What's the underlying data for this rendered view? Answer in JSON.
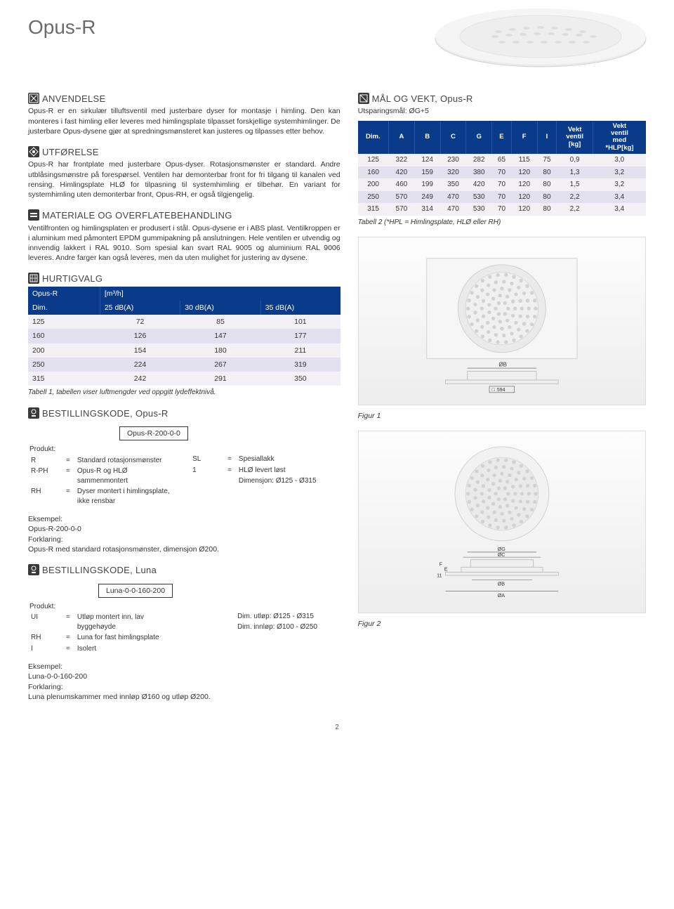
{
  "page": {
    "title": "Opus-R",
    "number": "2"
  },
  "sections": {
    "anvendelse": {
      "heading": "ANVENDELSE",
      "text": "Opus-R er en sirkulær tilluftsventil med justerbare dyser for montasje i himling. Den kan monteres i fast himling eller leveres med himlingsplate tilpasset forskjellige systemhimlinger. De justerbare Opus-dysene gjør at spredningsmønsteret kan justeres og tilpasses etter behov."
    },
    "utforelse": {
      "heading": "UTFØRELSE",
      "text": "Opus-R har frontplate med justerbare Opus-dyser. Rotasjonsmønster er standard. Andre utblåsingsmønstre på forespørsel. Ventilen har demonterbar front for fri tilgang til kanalen ved rensing. Himlingsplate HLØ for tilpasning til systemhimling er tilbehør. En variant for systemhimling uten demonterbar front, Opus-RH, er også tilgjengelig."
    },
    "materiale": {
      "heading": "MATERIALE OG OVERFLATEBEHANDLING",
      "text": "Ventilfronten og himlingsplaten er produsert i stål. Opus-dysene er i ABS plast. Ventilkroppen er i aluminium med påmontert EPDM gummipakning på anslutningen. Hele ventilen er utvendig og innvendig lakkert i RAL 9010. Som spesial kan svart RAL 9005 og aluminium RAL 9006 leveres. Andre farger kan også leveres, men da uten mulighet for justering av dysene."
    },
    "hurtigvalg": {
      "heading": "HURTIGVALG",
      "title_row": {
        "name": "Opus-R",
        "unit": "[m³/h]"
      },
      "columns": [
        "Dim.",
        "25 dB(A)",
        "30 dB(A)",
        "35 dB(A)"
      ],
      "rows": [
        [
          "125",
          "72",
          "85",
          "101"
        ],
        [
          "160",
          "126",
          "147",
          "177"
        ],
        [
          "200",
          "154",
          "180",
          "211"
        ],
        [
          "250",
          "224",
          "267",
          "319"
        ],
        [
          "315",
          "242",
          "291",
          "350"
        ]
      ],
      "caption": "Tabell 1, tabellen viser luftmengder ved oppgitt lydeffektnivå."
    },
    "bestilling_opus": {
      "heading": "BESTILLINGSKODE, Opus-R",
      "code": "Opus-R-200-0-0",
      "left": {
        "title": "Produkt:",
        "lines": [
          [
            "R",
            "=",
            "Standard rotasjonsmønster"
          ],
          [
            "R-PH",
            "=",
            "Opus-R og HLØ sammenmontert"
          ],
          [
            "RH",
            "=",
            "Dyser montert i himlingsplate, ikke rensbar"
          ]
        ]
      },
      "right": {
        "lines": [
          [
            "SL",
            "=",
            "Spesiallakk"
          ],
          [
            "1",
            "=",
            "HLØ levert løst"
          ],
          [
            "",
            "",
            "Dimensjon: Ø125 - Ø315"
          ]
        ]
      },
      "example": {
        "l1": "Eksempel:",
        "l2": "Opus-R-200-0-0",
        "l3": "Forklaring:",
        "l4": "Opus-R med standard rotasjonsmønster, dimensjon Ø200."
      }
    },
    "bestilling_luna": {
      "heading": "BESTILLINGSKODE, Luna",
      "code": "Luna-0-0-160-200",
      "left": {
        "title": "Produkt:",
        "lines": [
          [
            "UI",
            "=",
            "Utløp montert inn, lav byggehøyde"
          ],
          [
            "RH",
            "=",
            "Luna for fast himlingsplate"
          ],
          [
            "I",
            "=",
            "Isolert"
          ]
        ]
      },
      "right": {
        "lines": [
          [
            "",
            "",
            "Dim. utløp: Ø125 - Ø315"
          ],
          [
            "",
            "",
            "Dim. innløp: Ø100 - Ø250"
          ]
        ]
      },
      "example": {
        "l1": "Eksempel:",
        "l2": "Luna-0-0-160-200",
        "l3": "Forklaring:",
        "l4": "Luna plenumskammer med innløp Ø160 og utløp Ø200."
      }
    },
    "mal_vekt": {
      "heading": "MÅL OG VEKT, Opus-R",
      "subtitle": "Utsparingsmål: ØG+5",
      "columns": [
        "Dim.",
        "A",
        "B",
        "C",
        "G",
        "E",
        "F",
        "I",
        "Vekt ventil [kg]",
        "Vekt ventil med *HLP[kg]"
      ],
      "rows": [
        [
          "125",
          "322",
          "124",
          "230",
          "282",
          "65",
          "115",
          "75",
          "0,9",
          "3,0"
        ],
        [
          "160",
          "420",
          "159",
          "320",
          "380",
          "70",
          "120",
          "80",
          "1,3",
          "3,2"
        ],
        [
          "200",
          "460",
          "199",
          "350",
          "420",
          "70",
          "120",
          "80",
          "1,5",
          "3,2"
        ],
        [
          "250",
          "570",
          "249",
          "470",
          "530",
          "70",
          "120",
          "80",
          "2,2",
          "3,4"
        ],
        [
          "315",
          "570",
          "314",
          "470",
          "530",
          "70",
          "120",
          "80",
          "2,2",
          "3,4"
        ]
      ],
      "caption": "Tabell 2 (*HPL = Himlingsplate, HLØ eller RH)"
    },
    "figures": {
      "fig1": "Figur 1",
      "fig1_dimB": "ØB",
      "fig1_sq": "594",
      "fig2": "Figur 2",
      "fig2_labels": {
        "og": "ØG",
        "oc": "ØC",
        "ob": "ØB",
        "oa": "ØA",
        "e": "E",
        "f": "F",
        "eleven": "11"
      }
    }
  },
  "style": {
    "header_bg": "#0a3b8a",
    "row_odd": "#f3f1f6",
    "row_even": "#e3e1ef",
    "icon_bg": "#3a3a3a",
    "title_color": "#6b6b6b"
  }
}
